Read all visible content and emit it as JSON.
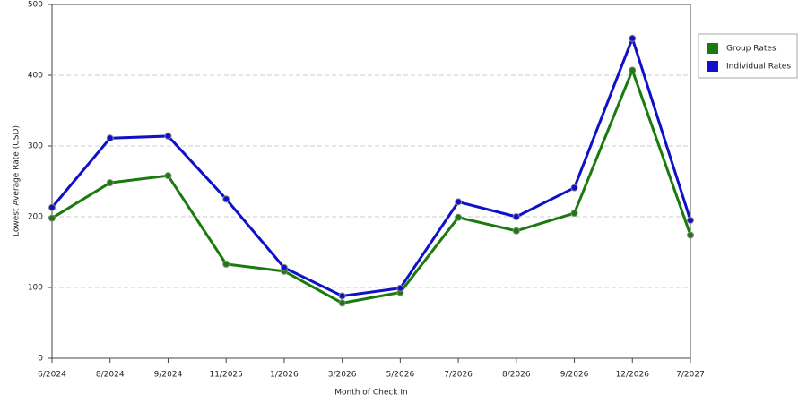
{
  "chart_data": {
    "type": "line",
    "x_label": "Month of Check In",
    "y_label": "Lowest Average Rate (USD)",
    "categories": [
      "6/2024",
      "8/2024",
      "9/2024",
      "11/2025",
      "1/2026",
      "3/2026",
      "5/2026",
      "7/2026",
      "8/2026",
      "9/2026",
      "12/2026",
      "7/2027"
    ],
    "series": [
      {
        "name": "Group Rates",
        "color": "#1a7a0e",
        "values": [
          198,
          248,
          258,
          133,
          123,
          78,
          93,
          199,
          180,
          205,
          407,
          174
        ]
      },
      {
        "name": "Individual Rates",
        "color": "#1010c8",
        "values": [
          213,
          311,
          314,
          225,
          128,
          88,
          99,
          221,
          200,
          241,
          452,
          195
        ]
      }
    ],
    "ylim": [
      0,
      500
    ],
    "yticks": [
      0,
      100,
      200,
      300,
      400,
      500
    ],
    "grid": true
  }
}
